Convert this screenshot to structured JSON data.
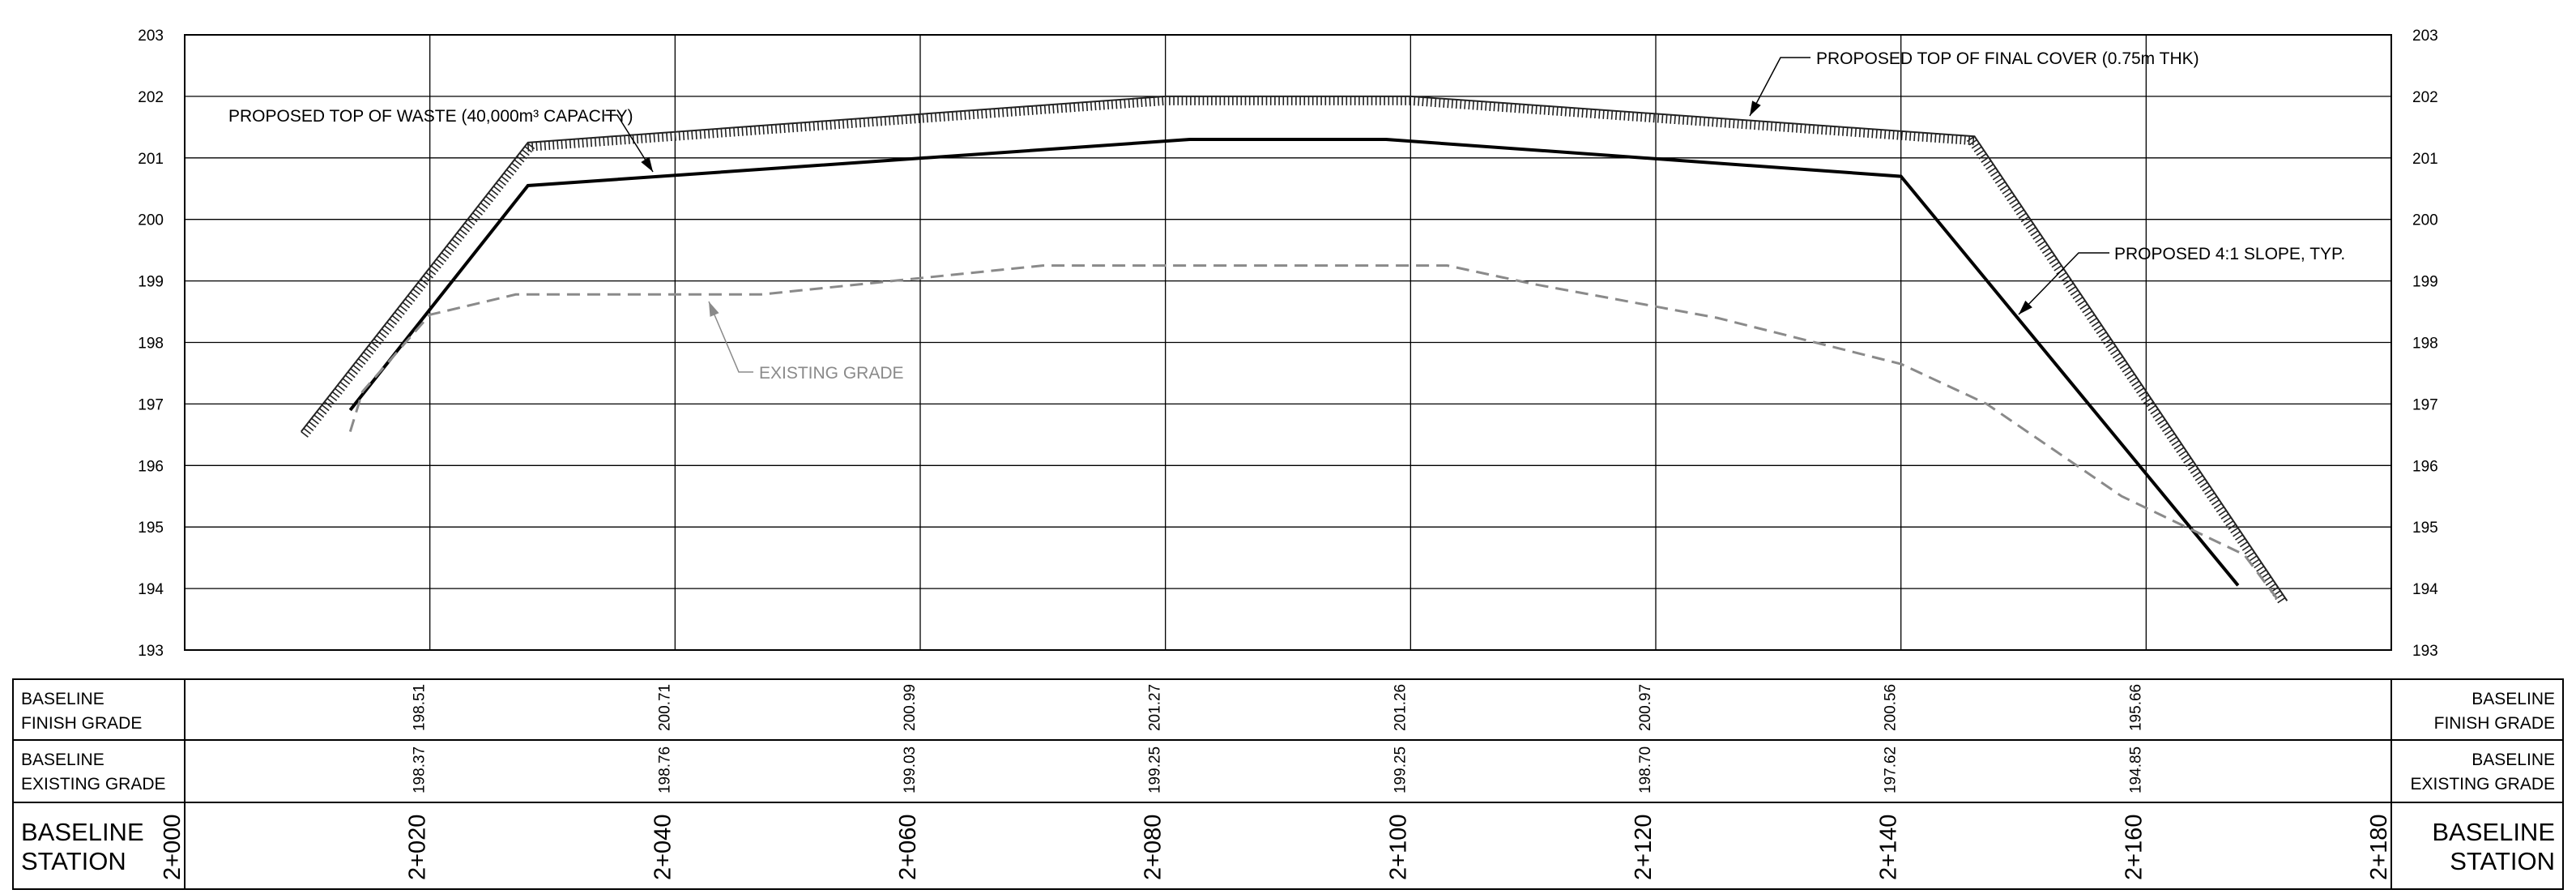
{
  "chart_data": {
    "type": "line",
    "x_unit": "m (chainage)",
    "xlim": [
      2000,
      2180
    ],
    "ylim": [
      193,
      203
    ],
    "y_ticks": [
      193,
      194,
      195,
      196,
      197,
      198,
      199,
      200,
      201,
      202,
      203
    ],
    "y_tick_labels": [
      "193",
      "194",
      "195",
      "196",
      "197",
      "198",
      "199",
      "200",
      "201",
      "202",
      "203"
    ],
    "grid": true,
    "series": [
      {
        "key": "final_cover",
        "style": "hatched",
        "color": "#222222",
        "points": [
          [
            2009.5,
            196.55
          ],
          [
            2028,
            201.25
          ],
          [
            2080,
            202.0
          ],
          [
            2100,
            202.0
          ],
          [
            2146,
            201.35
          ],
          [
            2171.5,
            193.8
          ]
        ]
      },
      {
        "key": "top_of_waste",
        "style": "solid",
        "color": "#000000",
        "points": [
          [
            2013.5,
            196.9
          ],
          [
            2028,
            200.55
          ],
          [
            2082,
            201.3
          ],
          [
            2098,
            201.3
          ],
          [
            2140,
            200.7
          ],
          [
            2167.5,
            194.05
          ]
        ]
      },
      {
        "key": "existing_grade",
        "style": "dashed",
        "color": "#8a8a8a",
        "points": [
          [
            2013.5,
            196.55
          ],
          [
            2014.5,
            197.2
          ],
          [
            2020,
            198.45
          ],
          [
            2027,
            198.78
          ],
          [
            2047,
            198.78
          ],
          [
            2070,
            199.25
          ],
          [
            2103,
            199.25
          ],
          [
            2110,
            198.95
          ],
          [
            2125,
            198.4
          ],
          [
            2140,
            197.65
          ],
          [
            2147,
            197.0
          ],
          [
            2158,
            195.5
          ],
          [
            2168,
            194.55
          ],
          [
            2171,
            193.75
          ]
        ]
      }
    ],
    "annotations": [
      {
        "key": "cover",
        "text": "PROPOSED TOP OF FINAL COVER (0.75m THK)"
      },
      {
        "key": "waste",
        "text": "PROPOSED TOP OF WASTE (40,000m³ CAPACITY)"
      },
      {
        "key": "slope",
        "text": "PROPOSED 4:1 SLOPE, TYP."
      },
      {
        "key": "existing",
        "text": "EXISTING GRADE"
      }
    ],
    "table": {
      "rows": [
        {
          "key": "finish",
          "title_lines": [
            "BASELINE",
            "FINISH GRADE"
          ]
        },
        {
          "key": "existing",
          "title_lines": [
            "BASELINE",
            "EXISTING GRADE"
          ]
        },
        {
          "key": "station",
          "title_lines": [
            "BASELINE",
            "STATION"
          ]
        }
      ],
      "finish_grade": [
        {
          "x": 2020,
          "label": "198.51"
        },
        {
          "x": 2040,
          "label": "200.71"
        },
        {
          "x": 2060,
          "label": "200.99"
        },
        {
          "x": 2080,
          "label": "201.27"
        },
        {
          "x": 2100,
          "label": "201.26"
        },
        {
          "x": 2120,
          "label": "200.97"
        },
        {
          "x": 2140,
          "label": "200.56"
        },
        {
          "x": 2160,
          "label": "195.66"
        }
      ],
      "existing_grade": [
        {
          "x": 2020,
          "label": "198.37"
        },
        {
          "x": 2040,
          "label": "198.76"
        },
        {
          "x": 2060,
          "label": "199.03"
        },
        {
          "x": 2080,
          "label": "199.25"
        },
        {
          "x": 2100,
          "label": "199.25"
        },
        {
          "x": 2120,
          "label": "198.70"
        },
        {
          "x": 2140,
          "label": "197.62"
        },
        {
          "x": 2160,
          "label": "194.85"
        }
      ],
      "stations": [
        {
          "x": 2000,
          "label": "2+000"
        },
        {
          "x": 2020,
          "label": "2+020"
        },
        {
          "x": 2040,
          "label": "2+040"
        },
        {
          "x": 2060,
          "label": "2+060"
        },
        {
          "x": 2080,
          "label": "2+080"
        },
        {
          "x": 2100,
          "label": "2+100"
        },
        {
          "x": 2120,
          "label": "2+120"
        },
        {
          "x": 2140,
          "label": "2+140"
        },
        {
          "x": 2160,
          "label": "2+160"
        },
        {
          "x": 2180,
          "label": "2+180"
        }
      ]
    }
  }
}
